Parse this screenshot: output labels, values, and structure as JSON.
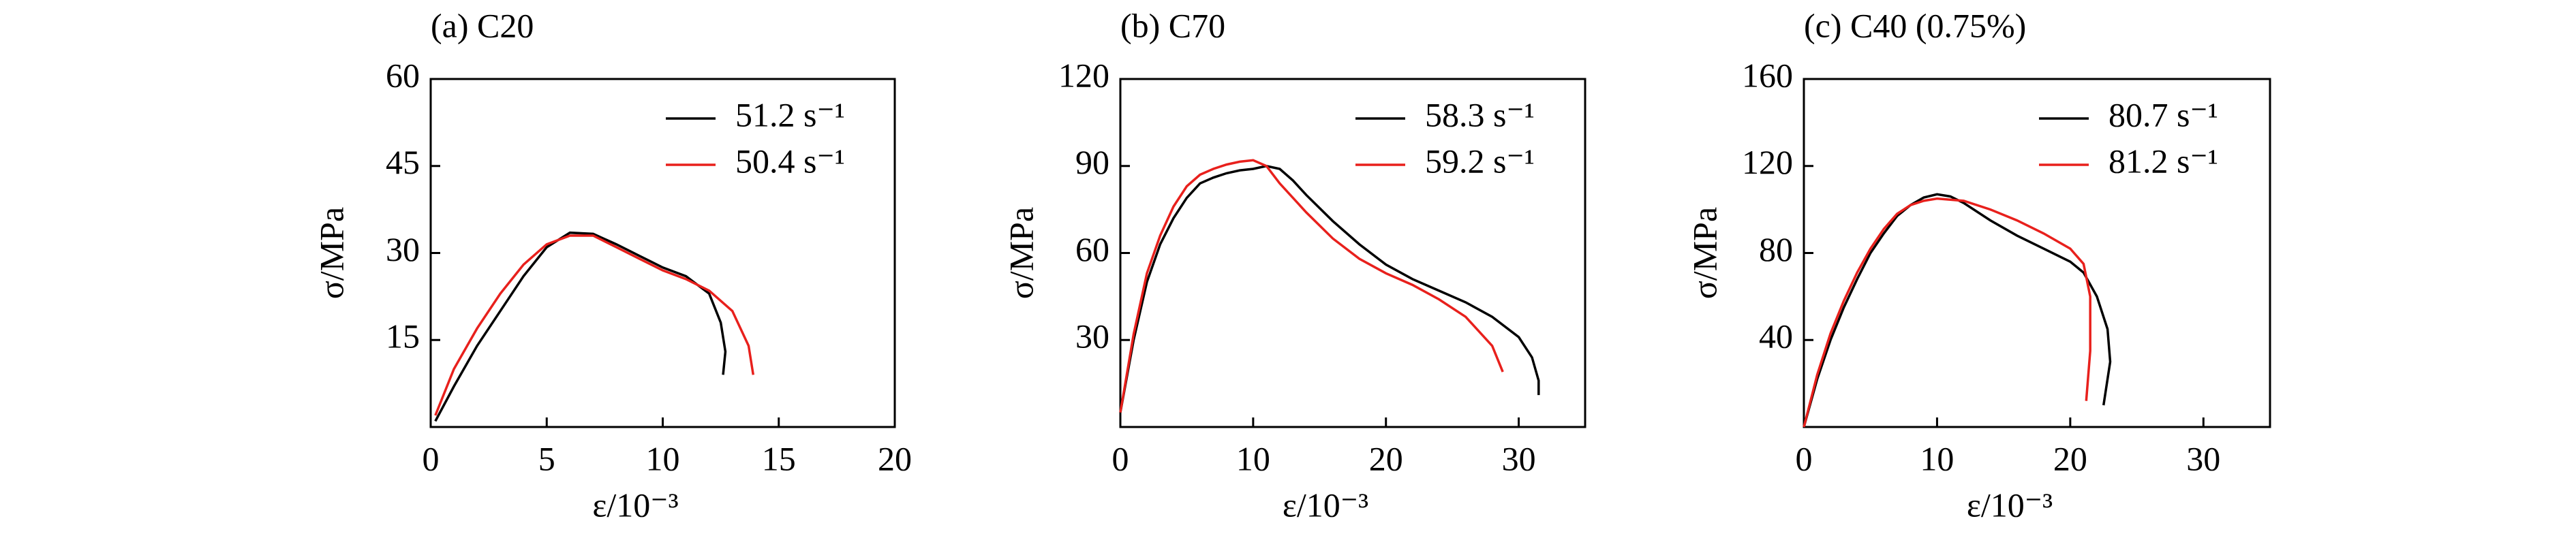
{
  "chart_data": [
    {
      "type": "line",
      "title": "(a) C20",
      "xlabel": "ε/10⁻³",
      "ylabel": "σ/MPa",
      "xlim": [
        0,
        20
      ],
      "xticks": [
        0,
        5,
        10,
        15,
        20
      ],
      "ylim": [
        0,
        60
      ],
      "yticks": [
        15,
        30,
        45,
        60
      ],
      "series": [
        {
          "name": "51.2 s⁻¹",
          "color": "#000000",
          "x": [
            0.2,
            1,
            2,
            3,
            4,
            5,
            6,
            7,
            8,
            9,
            10,
            11,
            12,
            12.5,
            12.7,
            12.6
          ],
          "values": [
            1,
            7,
            14,
            20,
            26,
            31,
            33.5,
            33.3,
            31.5,
            29.5,
            27.5,
            26,
            23,
            18,
            13,
            9
          ]
        },
        {
          "name": "50.4 s⁻¹",
          "color": "#e8201c",
          "x": [
            0.2,
            1,
            2,
            3,
            4,
            5,
            6,
            7,
            8,
            9,
            10,
            11,
            12,
            13,
            13.7,
            13.9
          ],
          "values": [
            2,
            10,
            17,
            23,
            28,
            31.5,
            33,
            33,
            31,
            29,
            27,
            25.5,
            23.5,
            20,
            14,
            9
          ]
        }
      ]
    },
    {
      "type": "line",
      "title": "(b) C70",
      "xlabel": "ε/10⁻³",
      "ylabel": "σ/MPa",
      "xlim": [
        0,
        35
      ],
      "xticks": [
        0,
        10,
        20,
        30
      ],
      "ylim": [
        0,
        120
      ],
      "yticks": [
        30,
        60,
        90,
        120
      ],
      "series": [
        {
          "name": "58.3 s⁻¹",
          "color": "#000000",
          "x": [
            0,
            1,
            2,
            3,
            4,
            5,
            6,
            7,
            8,
            9,
            10,
            11,
            12,
            13,
            14,
            16,
            18,
            20,
            22,
            24,
            26,
            28,
            30,
            31,
            31.5,
            31.5
          ],
          "values": [
            5,
            30,
            50,
            63,
            72,
            79,
            84,
            86,
            87.5,
            88.5,
            89,
            90,
            89,
            85,
            80,
            71,
            63,
            56,
            51,
            47,
            43,
            38,
            31,
            24,
            16,
            11
          ]
        },
        {
          "name": "59.2 s⁻¹",
          "color": "#e8201c",
          "x": [
            0,
            1,
            2,
            3,
            4,
            5,
            6,
            7,
            8,
            9,
            10,
            11,
            12,
            14,
            16,
            18,
            20,
            22,
            24,
            26,
            28,
            28.8
          ],
          "values": [
            5,
            32,
            53,
            66,
            76,
            83,
            87,
            89,
            90.5,
            91.5,
            92,
            90,
            84,
            74,
            65,
            58,
            53,
            49,
            44,
            38,
            28,
            19
          ]
        }
      ]
    },
    {
      "type": "line",
      "title": "(c) C40 (0.75%)",
      "xlabel": "ε/10⁻³",
      "ylabel": "σ/MPa",
      "xlim": [
        0,
        35
      ],
      "xticks": [
        0,
        10,
        20,
        30
      ],
      "ylim": [
        0,
        160
      ],
      "yticks": [
        40,
        80,
        120,
        160
      ],
      "series": [
        {
          "name": "80.7 s⁻¹",
          "color": "#000000",
          "x": [
            0,
            1,
            2,
            3,
            4,
            5,
            6,
            7,
            8,
            9,
            10,
            11,
            12,
            14,
            16,
            18,
            20,
            21,
            22,
            22.8,
            23,
            22.5
          ],
          "values": [
            0,
            22,
            40,
            55,
            68,
            80,
            89,
            97,
            102,
            105.5,
            107,
            106,
            103,
            95,
            88,
            82,
            76,
            71,
            60,
            45,
            30,
            10
          ]
        },
        {
          "name": "81.2 s⁻¹",
          "color": "#e8201c",
          "x": [
            0,
            1,
            2,
            3,
            4,
            5,
            6,
            7,
            8,
            9,
            10,
            12,
            14,
            16,
            18,
            20,
            21,
            21.5,
            21.5,
            21.2
          ],
          "values": [
            0,
            24,
            43,
            58,
            71,
            82,
            91,
            98,
            102,
            104,
            105,
            104,
            100,
            95,
            89,
            82,
            75,
            60,
            35,
            12
          ]
        }
      ]
    }
  ]
}
